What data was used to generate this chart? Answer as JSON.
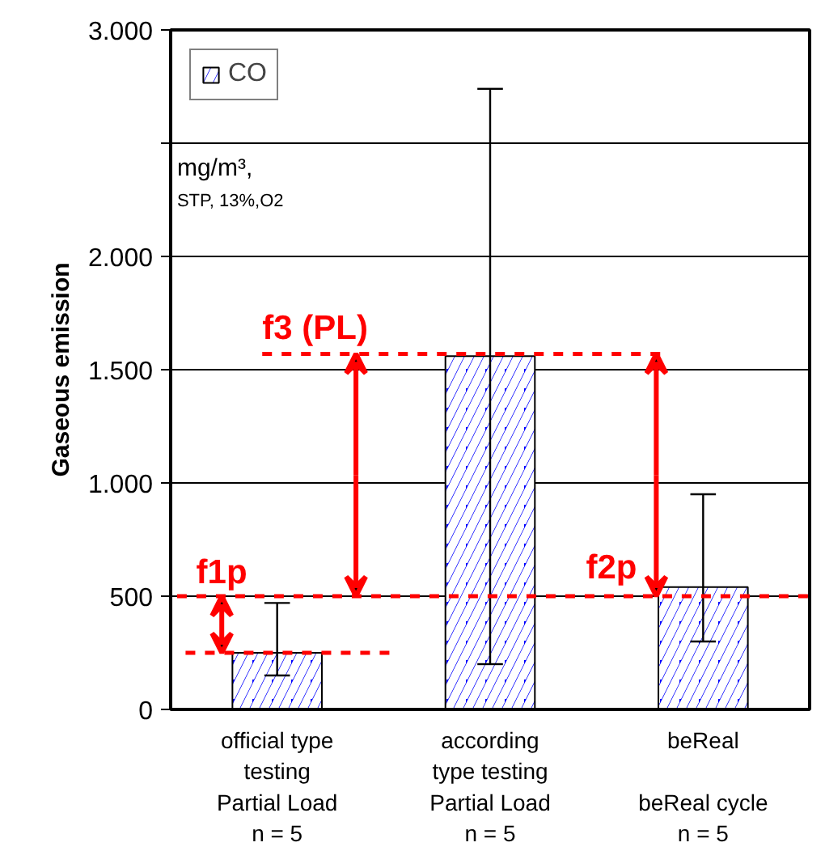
{
  "chart_data": {
    "type": "bar",
    "ylabel": "Gaseous emission",
    "categories": [
      "official type\ntesting\nPartial Load\nn = 5",
      "according\ntype testing\nPartial Load\nn = 5",
      "beReal\n\nbeReal cycle\nn = 5"
    ],
    "series": [
      {
        "name": "CO",
        "color": "#0000ff",
        "values": [
          250,
          1560,
          540
        ],
        "errors": [
          [
            150,
            470
          ],
          [
            200,
            2740
          ],
          [
            300,
            950
          ]
        ]
      }
    ],
    "ylim": [
      0,
      3000
    ],
    "yticks": [
      {
        "value": 0,
        "label": "0"
      },
      {
        "value": 500,
        "label": "500"
      },
      {
        "value": 1000,
        "label": "1.000"
      },
      {
        "value": 1500,
        "label": "1.500"
      },
      {
        "value": 2000,
        "label": "2.000"
      },
      {
        "value": 2500,
        "label": null
      },
      {
        "value": 3000,
        "label": "3.000"
      }
    ],
    "grid": "y",
    "legend": "top left",
    "ref_lines": [
      {
        "axis": "y",
        "value": 250,
        "color": "#ff0000",
        "line_style": "dashed"
      },
      {
        "axis": "y",
        "value": 500,
        "color": "#ff0000",
        "line_style": "dashed"
      },
      {
        "axis": "y",
        "value": 1570,
        "color": "#ff0000",
        "line_style": "dashed"
      }
    ],
    "annotations": [
      "mg/m³,",
      "STP, 13%,O2",
      "f1p",
      "f3 (PL)",
      {
        "text": "f2p",
        "y": 500
      }
    ]
  }
}
